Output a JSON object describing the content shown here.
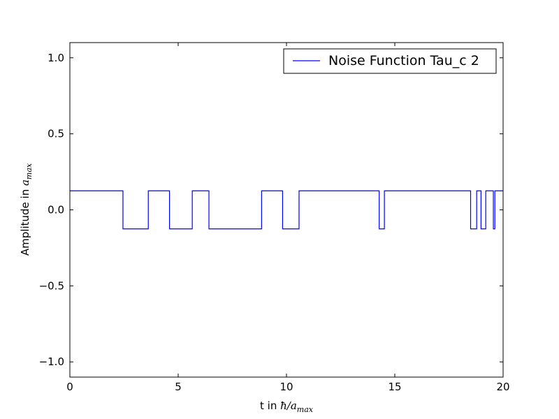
{
  "chart_data": {
    "type": "line",
    "step": true,
    "xlim": [
      0,
      20
    ],
    "ylim": [
      -1.1,
      1.1
    ],
    "x_ticks": [
      0,
      5,
      10,
      15,
      20
    ],
    "x_tick_labels": [
      "0",
      "5",
      "10",
      "15",
      "20"
    ],
    "y_ticks": [
      -1.0,
      -0.5,
      0.0,
      0.5,
      1.0
    ],
    "y_tick_labels": [
      "−1.0",
      "−0.5",
      "0.0",
      "0.5",
      "1.0"
    ],
    "xlabel": {
      "prefix": "t in ",
      "hbar": "ħ",
      "slash": "/",
      "base": "a",
      "sub": "max"
    },
    "ylabel": {
      "prefix": "Amplitude in ",
      "base": "a",
      "sub": "max"
    },
    "grid": false,
    "legend_position": "top-right",
    "series": [
      {
        "name": "Noise Function Tau_c 2",
        "color": "#0000ff",
        "x": [
          0,
          2.45,
          2.45,
          3.62,
          3.62,
          4.6,
          4.6,
          5.65,
          5.65,
          6.42,
          6.42,
          8.85,
          8.85,
          9.82,
          9.82,
          10.58,
          10.58,
          14.28,
          14.28,
          14.52,
          14.52,
          18.5,
          18.5,
          18.78,
          18.78,
          18.98,
          18.98,
          19.2,
          19.2,
          19.55,
          19.55,
          19.62,
          19.62,
          20
        ],
        "y": [
          0.125,
          0.125,
          -0.125,
          -0.125,
          0.125,
          0.125,
          -0.125,
          -0.125,
          0.125,
          0.125,
          -0.125,
          -0.125,
          0.125,
          0.125,
          -0.125,
          -0.125,
          0.125,
          0.125,
          -0.125,
          -0.125,
          0.125,
          0.125,
          -0.125,
          -0.125,
          0.125,
          0.125,
          -0.125,
          -0.125,
          0.125,
          0.125,
          -0.125,
          -0.125,
          0.125,
          0.125
        ]
      }
    ]
  }
}
